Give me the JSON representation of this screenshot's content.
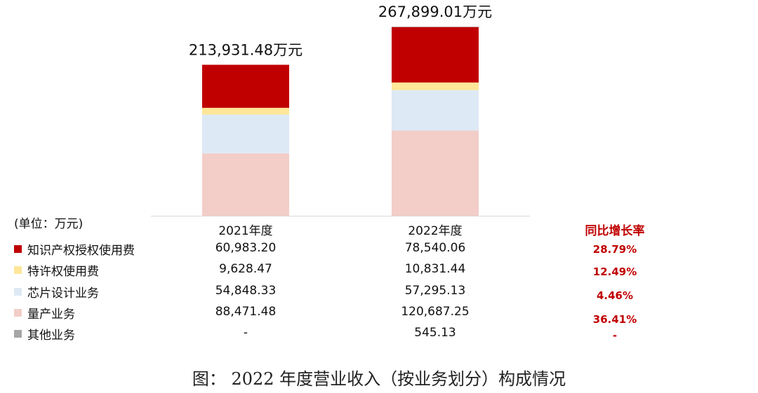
{
  "chart_data": {
    "type": "bar",
    "stacked": true,
    "unit_label": "(单位：万元)",
    "categories": [
      "2021年度",
      "2022年度"
    ],
    "totals": [
      "213,931.48万元",
      "267,899.01万元"
    ],
    "series": [
      {
        "name": "量产业务",
        "values": [
          88471.48,
          120687.25
        ],
        "display": [
          "88,471.48",
          "120,687.25"
        ],
        "color": "#f3cdc8",
        "yoy": "36.41%"
      },
      {
        "name": "芯片设计业务",
        "values": [
          54848.33,
          57295.13
        ],
        "display": [
          "54,848.33",
          "57,295.13"
        ],
        "color": "#dde9f5",
        "yoy": "4.46%"
      },
      {
        "name": "特许权使用费",
        "values": [
          9628.47,
          10831.44
        ],
        "display": [
          "9,628.47",
          "10,831.44"
        ],
        "color": "#ffe699",
        "yoy": "12.49%"
      },
      {
        "name": "知识产权授权使用费",
        "values": [
          60983.2,
          78540.06
        ],
        "display": [
          "60,983.20",
          "78,540.06"
        ],
        "color": "#c00000",
        "yoy": "28.79%"
      },
      {
        "name": "其他业务",
        "values": [
          0,
          545.13
        ],
        "display": [
          "-",
          "545.13"
        ],
        "color": "#a6a6a6",
        "yoy": "-"
      }
    ],
    "yoy_header": "同比增长率",
    "legend_order": [
      "知识产权授权使用费",
      "特许权使用费",
      "芯片设计业务",
      "量产业务",
      "其他业务"
    ]
  },
  "caption": "图：  2022 年度营业收入（按业务划分）构成情况"
}
